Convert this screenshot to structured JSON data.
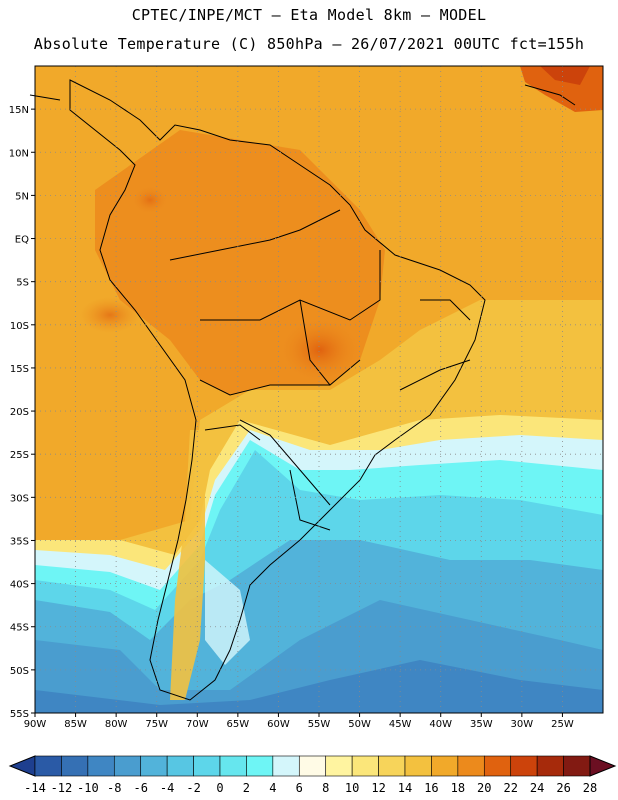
{
  "header": {
    "line1": "CPTEC/INPE/MCT –  Eta Model 8km – MODEL",
    "line2": "Absolute Temperature (C) 850hPa – 26/07/2021 00UTC fct=155h"
  },
  "map": {
    "lat_labels": [
      "15N",
      "10N",
      "5N",
      "EQ",
      "5S",
      "10S",
      "15S",
      "20S",
      "25S",
      "30S",
      "35S",
      "40S",
      "45S",
      "50S",
      "55S"
    ],
    "lat_values": [
      15,
      10,
      5,
      0,
      -5,
      -10,
      -15,
      -20,
      -25,
      -30,
      -35,
      -40,
      -45,
      -50,
      -55
    ],
    "lon_labels": [
      "90W",
      "85W",
      "80W",
      "75W",
      "70W",
      "65W",
      "60W",
      "55W",
      "50W",
      "45W",
      "40W",
      "35W",
      "30W",
      "25W"
    ],
    "lon_values": [
      -90,
      -85,
      -80,
      -75,
      -70,
      -65,
      -60,
      -55,
      -50,
      -45,
      -40,
      -35,
      -30,
      -25
    ],
    "lon_range": [
      -90,
      -20
    ],
    "lat_range": [
      -55,
      20
    ],
    "grid": true
  },
  "colorbar": {
    "levels": [
      "-14",
      "-12",
      "-10",
      "-8",
      "-6",
      "-4",
      "-2",
      "0",
      "2",
      "4",
      "6",
      "8",
      "10",
      "12",
      "14",
      "16",
      "18",
      "20",
      "22",
      "24",
      "26",
      "28"
    ],
    "colors": [
      "#1e3f8f",
      "#2a5aa6",
      "#3570b4",
      "#3f86c3",
      "#4a9dcf",
      "#52b3da",
      "#57c6e3",
      "#5dd6ea",
      "#66e6ee",
      "#6ef5f5",
      "#d4f6fb",
      "#fffbe6",
      "#fff4a0",
      "#fbe67a",
      "#f7d45a",
      "#f3c13f",
      "#f1a92a",
      "#ec8a1c",
      "#e0620f",
      "#cc430b",
      "#a62a0b",
      "#821a12",
      "#6b0f22"
    ]
  }
}
